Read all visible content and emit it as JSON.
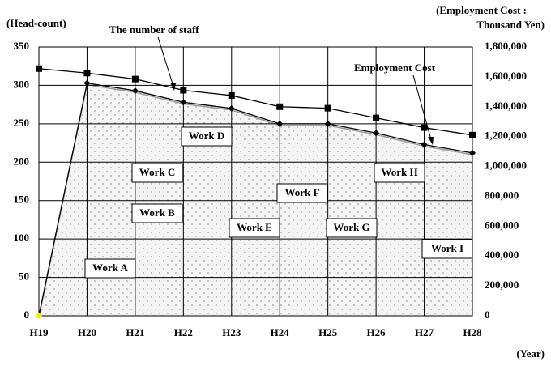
{
  "chart_data": {
    "type": "line",
    "y_label": "(Head-count)",
    "y2_label": [
      "(Employment Cost :",
      "Thousand Yen)"
    ],
    "x_label": "(Year)",
    "categories": [
      "H19",
      "H20",
      "H21",
      "H22",
      "H23",
      "H24",
      "H25",
      "H26",
      "H27",
      "H28"
    ],
    "ylim": [
      0,
      350
    ],
    "yticks": [
      0,
      50,
      100,
      150,
      200,
      250,
      300,
      350
    ],
    "y2lim": [
      0,
      1800000
    ],
    "y2ticks": [
      {
        "value": 0,
        "label": "0"
      },
      {
        "value": 200000,
        "label": "200,000"
      },
      {
        "value": 400000,
        "label": "400,000"
      },
      {
        "value": 600000,
        "label": "600,000"
      },
      {
        "value": 800000,
        "label": "800,000"
      },
      {
        "value": 1000000,
        "label": "1,000,000"
      },
      {
        "value": 1200000,
        "label": "1,200,000"
      },
      {
        "value": 1400000,
        "label": "1,400,000"
      },
      {
        "value": 1600000,
        "label": "1,600,000"
      },
      {
        "value": 1800000,
        "label": "1,800,000"
      }
    ],
    "grid": true,
    "series": [
      {
        "name": "The number of staff",
        "color": "#000000",
        "marker": "diamond",
        "fill": "dotted",
        "values": [
          0,
          303,
          293,
          278,
          270,
          250,
          250,
          238,
          223,
          212
        ]
      },
      {
        "name": "Employment Cost",
        "color": "#000000",
        "marker": "square",
        "axis": "y2",
        "values": [
          1655000,
          1625000,
          1585000,
          1510000,
          1475000,
          1400000,
          1390000,
          1325000,
          1260000,
          1210000
        ]
      }
    ],
    "annotations": [
      "Work A",
      "Work B",
      "Work C",
      "Work D",
      "Work E",
      "Work F",
      "Work G",
      "Work H",
      "Work I"
    ]
  }
}
